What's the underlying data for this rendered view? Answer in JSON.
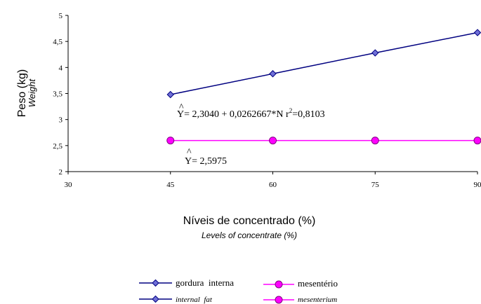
{
  "chart_data": {
    "type": "line",
    "x": [
      45,
      60,
      75,
      90
    ],
    "xlim": [
      30,
      90
    ],
    "ylim": [
      2,
      5
    ],
    "x_ticks": [
      "30",
      "45",
      "60",
      "75",
      "90"
    ],
    "y_ticks": [
      "2",
      "2,5",
      "3",
      "3,5",
      "4",
      "4,5",
      "5"
    ],
    "ylabel": "Peso (kg)",
    "ylabel_en": "Weight",
    "xlabel": "Níveis de concentrado (%)",
    "xlabel_en": "Levels of concentrate (%)",
    "series": [
      {
        "name": "gordura  interna",
        "name_en": "internal  fat",
        "values": [
          3.48,
          3.88,
          4.28,
          4.67
        ],
        "color": "#000080",
        "marker_fill": "#6f6fd6",
        "marker": "diamond"
      },
      {
        "name": "mesentério",
        "name_en": "mesenterium",
        "values": [
          2.5975,
          2.5975,
          2.5975,
          2.5975
        ],
        "color": "#ff00ff",
        "marker_fill": "#ff00ff",
        "marker": "circle"
      }
    ],
    "annotations": [
      {
        "hat": "^",
        "text": "Y= 2,3040 + 0,0262667*N r",
        "sup": "2",
        "text2": "=0,8103"
      },
      {
        "hat": "^",
        "text": "Y= 2,5975"
      }
    ],
    "grid": false,
    "legend_position": "bottom"
  }
}
